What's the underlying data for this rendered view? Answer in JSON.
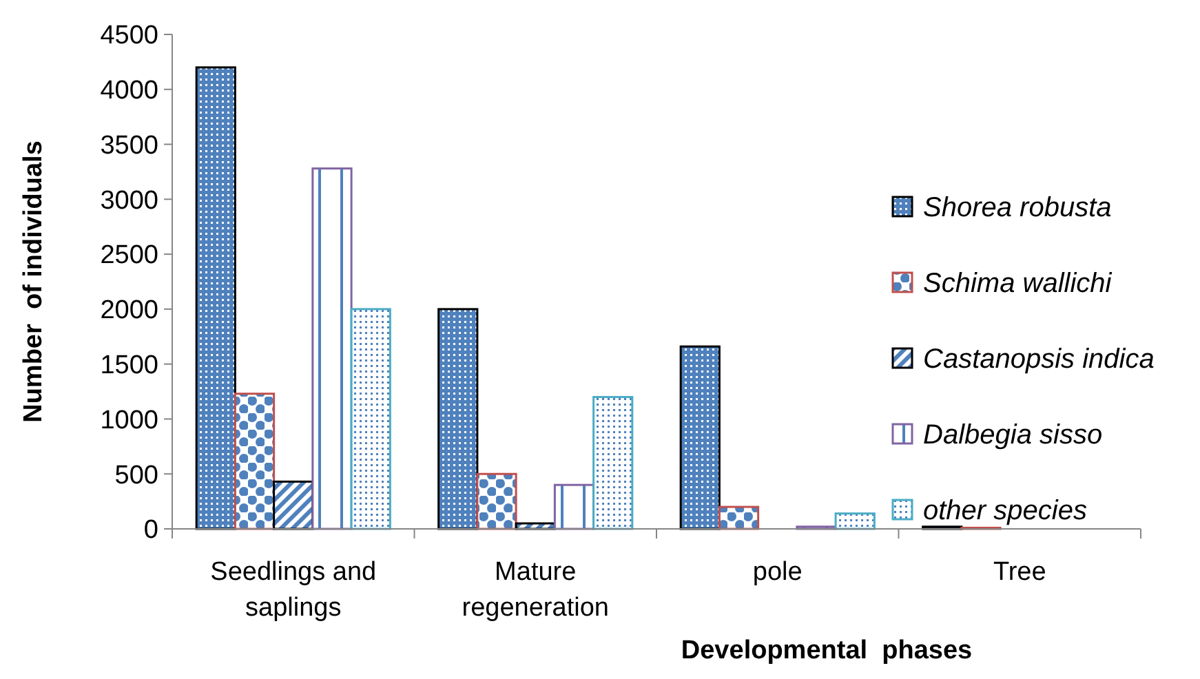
{
  "chart_data": {
    "type": "bar",
    "xlabel": "Developmental  phases",
    "ylabel": "Number  of individuals",
    "categories": [
      "Seedlings and saplings",
      "Mature regeneration",
      "pole",
      "Tree"
    ],
    "ylim": [
      0,
      4500
    ],
    "yticks": [
      0,
      500,
      1000,
      1500,
      2000,
      2500,
      3000,
      3500,
      4000,
      4500
    ],
    "grid": false,
    "legend": "right",
    "series": [
      {
        "name": "Shorea robusta",
        "color": "#000000",
        "values": [
          4200,
          2000,
          1660,
          20
        ]
      },
      {
        "name": "Schima wallichi",
        "color": "#c0504d",
        "values": [
          1230,
          500,
          200,
          10
        ]
      },
      {
        "name": "Castanopsis indica",
        "color": "#000000",
        "values": [
          430,
          50,
          0,
          0
        ]
      },
      {
        "name": "Dalbegia sisso",
        "color": "#8064a2",
        "values": [
          3280,
          400,
          20,
          0
        ]
      },
      {
        "name": "other species",
        "color": "#4bacc6",
        "values": [
          2000,
          1200,
          140,
          0
        ]
      }
    ]
  }
}
